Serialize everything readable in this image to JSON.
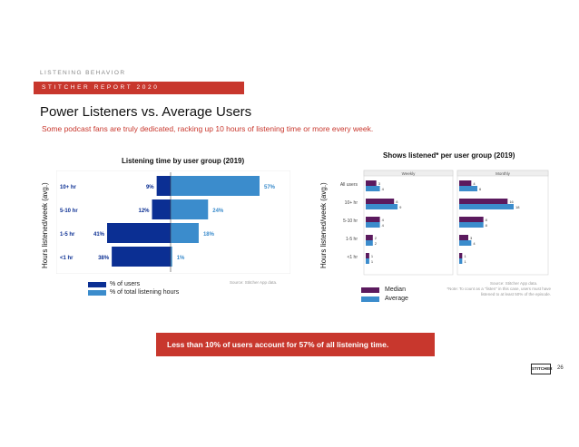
{
  "header": {
    "eyebrow": "LISTENING BEHAVIOR",
    "banner": "STITCHER REPORT 2020",
    "title": "Power Listeners vs. Average Users",
    "subtitle": "Some podcast fans are truly dedicated, racking up 10 hours of listening time or more every week."
  },
  "colors": {
    "accent_red": "#c8372d",
    "dark_blue": "#0b2f93",
    "light_blue": "#3b8ccc",
    "purple": "#5b1a5e"
  },
  "chart_data": [
    {
      "type": "bar",
      "title": "Listening time by user group (2019)",
      "ylabel": "Hours listened/week (avg.)",
      "categories": [
        "10+ hr",
        "5-10 hr",
        "1-5 hr",
        "<1 hr"
      ],
      "series": [
        {
          "name": "% of users",
          "values": [
            9,
            12,
            41,
            38
          ],
          "labels": [
            "9%",
            "12%",
            "41%",
            "38%"
          ]
        },
        {
          "name": "% of total listening hours",
          "values": [
            57,
            24,
            18,
            1
          ],
          "labels": [
            "57%",
            "24%",
            "18%",
            "1%"
          ]
        }
      ],
      "layout": "diverging",
      "source": "Source: Stitcher App data."
    },
    {
      "type": "bar",
      "title": "Shows listened* per user group (2019)",
      "ylabel": "Hours listened/week (avg.)",
      "categories": [
        "All users",
        "10+ hr",
        "5-10 hr",
        "1-5 hr",
        "<1 hr"
      ],
      "panels": [
        "Weekly",
        "Monthly"
      ],
      "series": [
        {
          "name": "Median",
          "weekly": [
            3,
            8,
            4,
            2,
            1
          ],
          "monthly": [
            4,
            16,
            8,
            3,
            1
          ]
        },
        {
          "name": "Average",
          "weekly": [
            4,
            9,
            4,
            2,
            1
          ],
          "monthly": [
            6,
            18,
            8,
            4,
            1
          ]
        }
      ],
      "source": "Source: Stitcher App data.",
      "note": "*Note: To count as a \"listen\" in this case, users must have listened to at least 50% of the episode."
    }
  ],
  "callout": "Less than 10% of users account for 57% of all listening time.",
  "logo": "STITCHER",
  "page_number": "26"
}
